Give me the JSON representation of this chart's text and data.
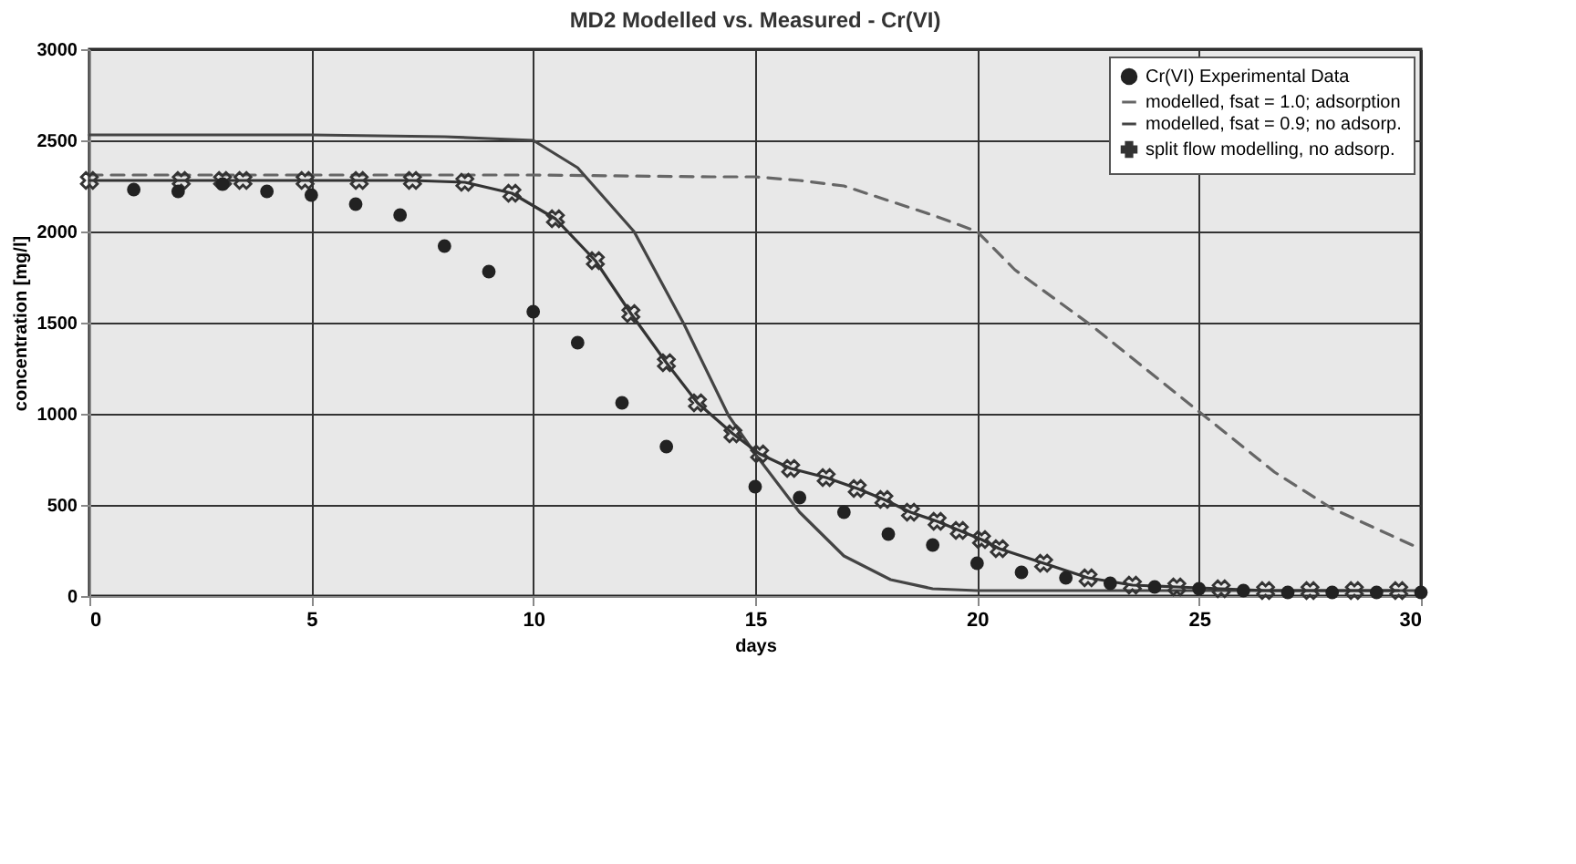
{
  "chart_data": {
    "type": "line",
    "title": "MD2  Modelled vs. Measured - Cr(VI)",
    "xlabel": "days",
    "ylabel": "concentration [mg/l]",
    "xlim": [
      0,
      30
    ],
    "xticks": [
      0,
      5,
      10,
      15,
      20,
      25,
      30
    ],
    "ylim": [
      0,
      3000
    ],
    "yticks": [
      0,
      500,
      1000,
      1500,
      2000,
      2500,
      3000
    ],
    "grid": true,
    "legend": "top right",
    "series": [
      {
        "name": "Cr(VI) Experimental Data",
        "type": "scatter",
        "marker": "circle",
        "color": "#222222",
        "x": [
          1,
          2,
          3,
          4,
          5,
          6,
          7,
          8,
          9,
          10,
          11,
          12,
          13,
          15,
          16,
          17,
          18,
          19,
          20,
          21,
          22,
          23,
          24,
          25,
          26,
          27,
          28,
          29,
          30
        ],
        "values": [
          2230,
          2220,
          2260,
          2220,
          2200,
          2150,
          2090,
          1920,
          1780,
          1560,
          1390,
          1060,
          820,
          600,
          540,
          460,
          340,
          280,
          180,
          130,
          100,
          70,
          50,
          40,
          30,
          20,
          20,
          20,
          20
        ]
      },
      {
        "name": "modelled, fsat = 1.0; adsorption",
        "line_style": "dashed",
        "marker": "none",
        "color": "#666666",
        "x": [
          0,
          5,
          10,
          14,
          15,
          16,
          17,
          18,
          19,
          20,
          20.85,
          22.6,
          24.7,
          26.7,
          28,
          29.8,
          30
        ],
        "values": [
          2310,
          2310,
          2310,
          2300,
          2300,
          2280,
          2250,
          2170,
          2090,
          2000,
          1790,
          1480,
          1070,
          680,
          480,
          280,
          260
        ]
      },
      {
        "name": "modelled, fsat = 0.9; no adsorp.",
        "line_style": "solid",
        "marker": "none",
        "color": "#444444",
        "x": [
          0,
          5,
          8,
          9,
          10,
          11,
          12.27,
          13.4,
          14.4,
          15,
          16,
          17,
          18.05,
          19,
          20,
          25,
          30
        ],
        "values": [
          2530,
          2530,
          2520,
          2510,
          2500,
          2350,
          2000,
          1490,
          990,
          780,
          460,
          220,
          90,
          40,
          30,
          30,
          30
        ]
      },
      {
        "name": "split flow modelling, no adsorp.",
        "line_style": "solid",
        "marker": "cross",
        "color": "#333333",
        "x": [
          0,
          2.07,
          3,
          3.46,
          4.86,
          6.08,
          7.28,
          8.46,
          9.52,
          10.5,
          11.4,
          12.2,
          13,
          13.7,
          14.5,
          15.1,
          15.8,
          16.6,
          17.3,
          17.9,
          18.5,
          19.1,
          19.6,
          20.1,
          20.5,
          21.5,
          22.5,
          23.5,
          24.5,
          25.5,
          26.5,
          27.5,
          28.5,
          29.5
        ],
        "values": [
          2280,
          2280,
          2280,
          2280,
          2280,
          2280,
          2280,
          2270,
          2210,
          2070,
          1840,
          1550,
          1280,
          1060,
          890,
          780,
          700,
          650,
          590,
          530,
          460,
          410,
          360,
          310,
          260,
          180,
          100,
          60,
          50,
          40,
          30,
          30,
          30,
          30
        ]
      }
    ]
  }
}
